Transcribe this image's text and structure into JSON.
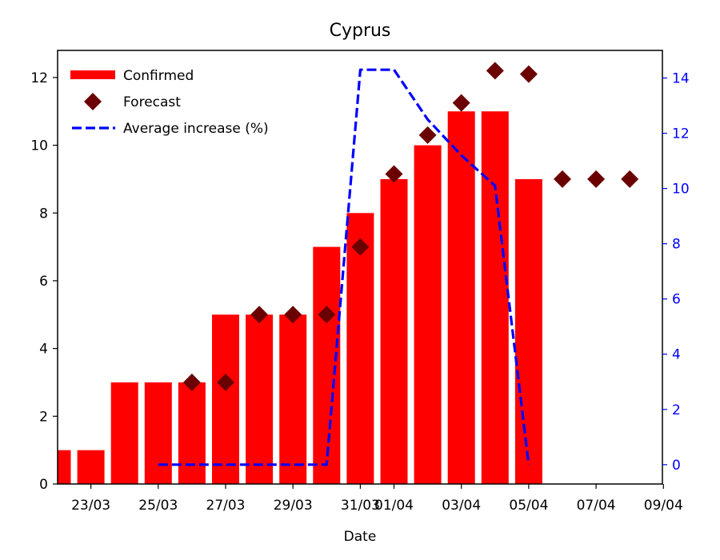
{
  "chart_data": {
    "type": "bar",
    "title": "Cyprus",
    "xlabel": "Date",
    "ylabel": "",
    "ylim": [
      0,
      12.8
    ],
    "y2lim": [
      -0.7,
      15
    ],
    "xticks": [
      "23/03",
      "25/03",
      "27/03",
      "29/03",
      "31/03",
      "01/04",
      "03/04",
      "05/04",
      "07/04",
      "09/04"
    ],
    "yticks": [
      "0",
      "2",
      "4",
      "6",
      "8",
      "10",
      "12"
    ],
    "y2ticks": [
      "0",
      "2",
      "4",
      "6",
      "8",
      "10",
      "12",
      "14"
    ],
    "legend_position": "top-left",
    "grid": false,
    "series": [
      {
        "name": "Confirmed",
        "type": "bar",
        "axis": "left",
        "color": "#ff0000",
        "x": [
          "22/03",
          "23/03",
          "24/03",
          "25/03",
          "26/03",
          "27/03",
          "28/03",
          "29/03",
          "30/03",
          "31/03",
          "01/04",
          "02/04",
          "03/04",
          "04/04",
          "05/04"
        ],
        "values": [
          1,
          1,
          3,
          3,
          3,
          5,
          5,
          5,
          7,
          8,
          9,
          10,
          11,
          11,
          9
        ]
      },
      {
        "name": "Forecast",
        "type": "scatter",
        "axis": "left",
        "marker": "diamond",
        "color": "#6b0000",
        "x": [
          "26/03",
          "27/03",
          "28/03",
          "29/03",
          "30/03",
          "31/03",
          "01/04",
          "02/04",
          "03/04",
          "04/04",
          "05/04",
          "06/04",
          "07/04",
          "08/04"
        ],
        "values": [
          3,
          3,
          5,
          5,
          5,
          7,
          9.15,
          10.3,
          11.25,
          12.2,
          12.1,
          9,
          9,
          9
        ]
      },
      {
        "name": "Average increase (%)",
        "type": "line",
        "axis": "right",
        "style": "dashed",
        "color": "#0000ff",
        "x": [
          "25/03",
          "26/03",
          "27/03",
          "28/03",
          "29/03",
          "30/03",
          "31/03",
          "01/04",
          "02/04",
          "03/04",
          "04/04",
          "05/04"
        ],
        "values": [
          0,
          0,
          0,
          0,
          0,
          0,
          14.3,
          14.3,
          12.5,
          11.2,
          10.1,
          0
        ]
      }
    ]
  }
}
